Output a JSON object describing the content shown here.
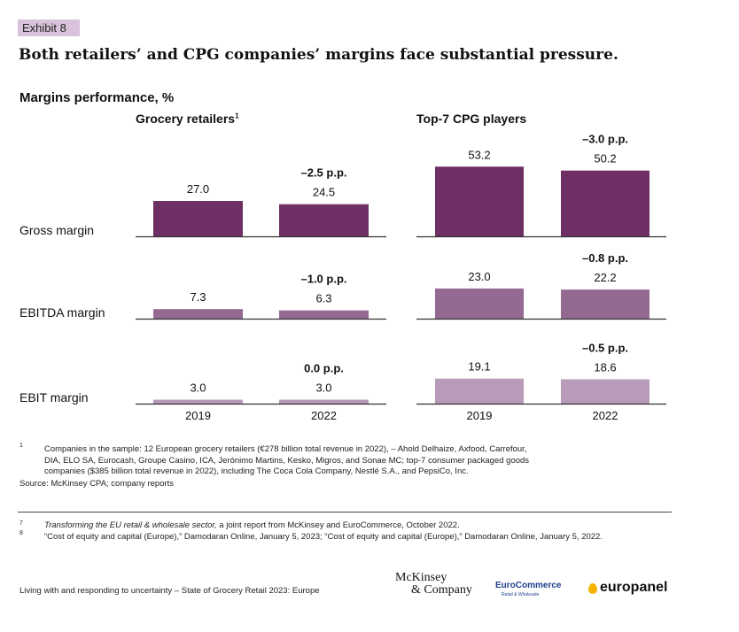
{
  "exhibit_label": "Exhibit 8",
  "headline": "Both retailers’ and CPG companies’ margins face substantial pressure.",
  "colors": {
    "gross": "#6e3064",
    "ebitda": "#946a93",
    "ebit": "#b89ab9",
    "exhibit_bg": "#d8c3da"
  },
  "chart_data": {
    "type": "bar",
    "title": "Margins performance, %",
    "unit": "%",
    "categories": [
      "2019",
      "2022"
    ],
    "rows": [
      "Gross margin",
      "EBITDA margin",
      "EBIT margin"
    ],
    "panels": [
      {
        "title": "Grocery retailers",
        "title_sup": "1",
        "series": [
          {
            "name": "Gross margin",
            "values": [
              27.0,
              24.5
            ],
            "labels": [
              "27.0",
              "24.5"
            ],
            "delta": "–2.5 p.p."
          },
          {
            "name": "EBITDA margin",
            "values": [
              7.3,
              6.3
            ],
            "labels": [
              "7.3",
              "6.3"
            ],
            "delta": "–1.0 p.p."
          },
          {
            "name": "EBIT margin",
            "values": [
              3.0,
              3.0
            ],
            "labels": [
              "3.0",
              "3.0"
            ],
            "delta": "0.0 p.p."
          }
        ]
      },
      {
        "title": "Top-7 CPG players",
        "title_sup": "",
        "series": [
          {
            "name": "Gross margin",
            "values": [
              53.2,
              50.2
            ],
            "labels": [
              "53.2",
              "50.2"
            ],
            "delta": "–3.0 p.p."
          },
          {
            "name": "EBITDA margin",
            "values": [
              23.0,
              22.2
            ],
            "labels": [
              "23.0",
              "22.2"
            ],
            "delta": "–0.8 p.p."
          },
          {
            "name": "EBIT margin",
            "values": [
              19.1,
              18.6
            ],
            "labels": [
              "19.1",
              "18.6"
            ],
            "delta": "–0.5 p.p."
          }
        ]
      }
    ]
  },
  "footnotes": {
    "note1_num": "1",
    "note1_text": "Companies in the sample: 12 European grocery retailers (€278 billion total revenue in 2022), – Ahold Delhaize, Axfood, Carrefour, DIA, ELO SA, Eurocash, Groupe Casino, ICA, Jerónimo Martins, Kesko, Migros, and Sonae MC; top-7 consumer packaged goods companies ($385 billion total revenue in 2022), including The Coca Cola Company, Nestlé S.A., and PepsiCo, Inc.",
    "source": "Source: McKinsey CPA; company reports",
    "note7_num": "7",
    "note7_title": "Transforming the EU retail & wholesale sector,",
    "note7_rest": " a joint report from McKinsey and EuroCommerce, October 2022.",
    "note8_num": "8",
    "note8_text": "“Cost of equity and capital (Europe),” Damodaran Online, January 5, 2023; “Cost of equity and capital (Europe),” Damodaran Online, January 5, 2022."
  },
  "footer": {
    "text": "Living with and responding to uncertainty – State of Grocery Retail 2023: Europe",
    "logo_mckinsey_line1": "McKinsey",
    "logo_mckinsey_line2": "& Company",
    "logo_eurocommerce": "EuroCommerce",
    "logo_eurocommerce_sub": "Retail & Wholesale",
    "logo_europanel": "europanel"
  }
}
